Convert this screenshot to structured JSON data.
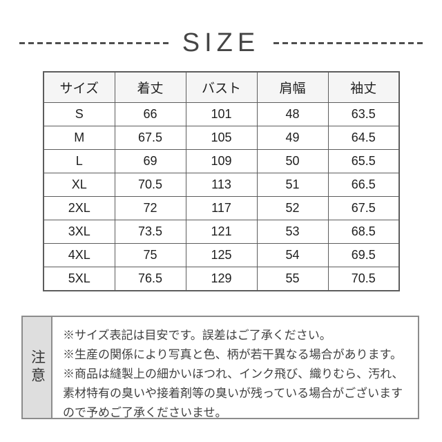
{
  "title": "SIZE",
  "chart_data": {
    "type": "table",
    "title": "SIZE",
    "columns": [
      "サイズ",
      "着丈",
      "バスト",
      "肩幅",
      "袖丈"
    ],
    "rows": [
      [
        "S",
        "66",
        "101",
        "48",
        "63.5"
      ],
      [
        "M",
        "67.5",
        "105",
        "49",
        "64.5"
      ],
      [
        "L",
        "69",
        "109",
        "50",
        "65.5"
      ],
      [
        "XL",
        "70.5",
        "113",
        "51",
        "66.5"
      ],
      [
        "2XL",
        "72",
        "117",
        "52",
        "67.5"
      ],
      [
        "3XL",
        "73.5",
        "121",
        "53",
        "68.5"
      ],
      [
        "4XL",
        "75",
        "125",
        "54",
        "69.5"
      ],
      [
        "5XL",
        "76.5",
        "129",
        "55",
        "70.5"
      ]
    ]
  },
  "notice": {
    "label": "注意",
    "lines": [
      "※サイズ表記は目安です。誤差はご了承ください。",
      "※生産の関係により写真と色、柄が若干異なる場合があります。",
      "※商品は縫製上の細かいほつれ、インク飛び、織りむら、汚れ、素材特有の臭いや接着剤等の臭いが残っている場合がございますので予めご了承くださいませ。"
    ]
  },
  "colors": {
    "background": "#ffffff",
    "title_text": "#454545",
    "dash": "#4d4d4d",
    "table_border": "#5c5c5c",
    "header_bg": "#f5f5f5",
    "cell_text": "#1e1e1e",
    "notice_border": "#8c8c8c",
    "notice_label_bg": "#dedede",
    "notice_text": "#404040"
  }
}
